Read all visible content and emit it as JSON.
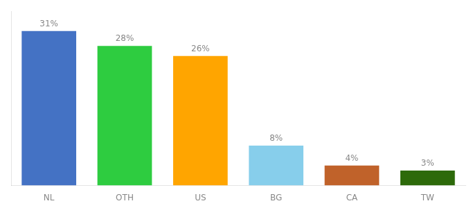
{
  "chart_data": {
    "type": "bar",
    "categories": [
      "NL",
      "OTH",
      "US",
      "BG",
      "CA",
      "TW"
    ],
    "values": [
      31,
      28,
      26,
      8,
      4,
      3
    ],
    "value_labels": [
      "31%",
      "28%",
      "26%",
      "8%",
      "4%",
      "3%"
    ],
    "colors": [
      "#4472C4",
      "#2ECC40",
      "#FFA500",
      "#87CEEB",
      "#C0622A",
      "#2D6A0A"
    ],
    "ylim": [
      0,
      35
    ],
    "yticks": [],
    "grid": false,
    "data_labels": true,
    "tick_labels": "x"
  }
}
